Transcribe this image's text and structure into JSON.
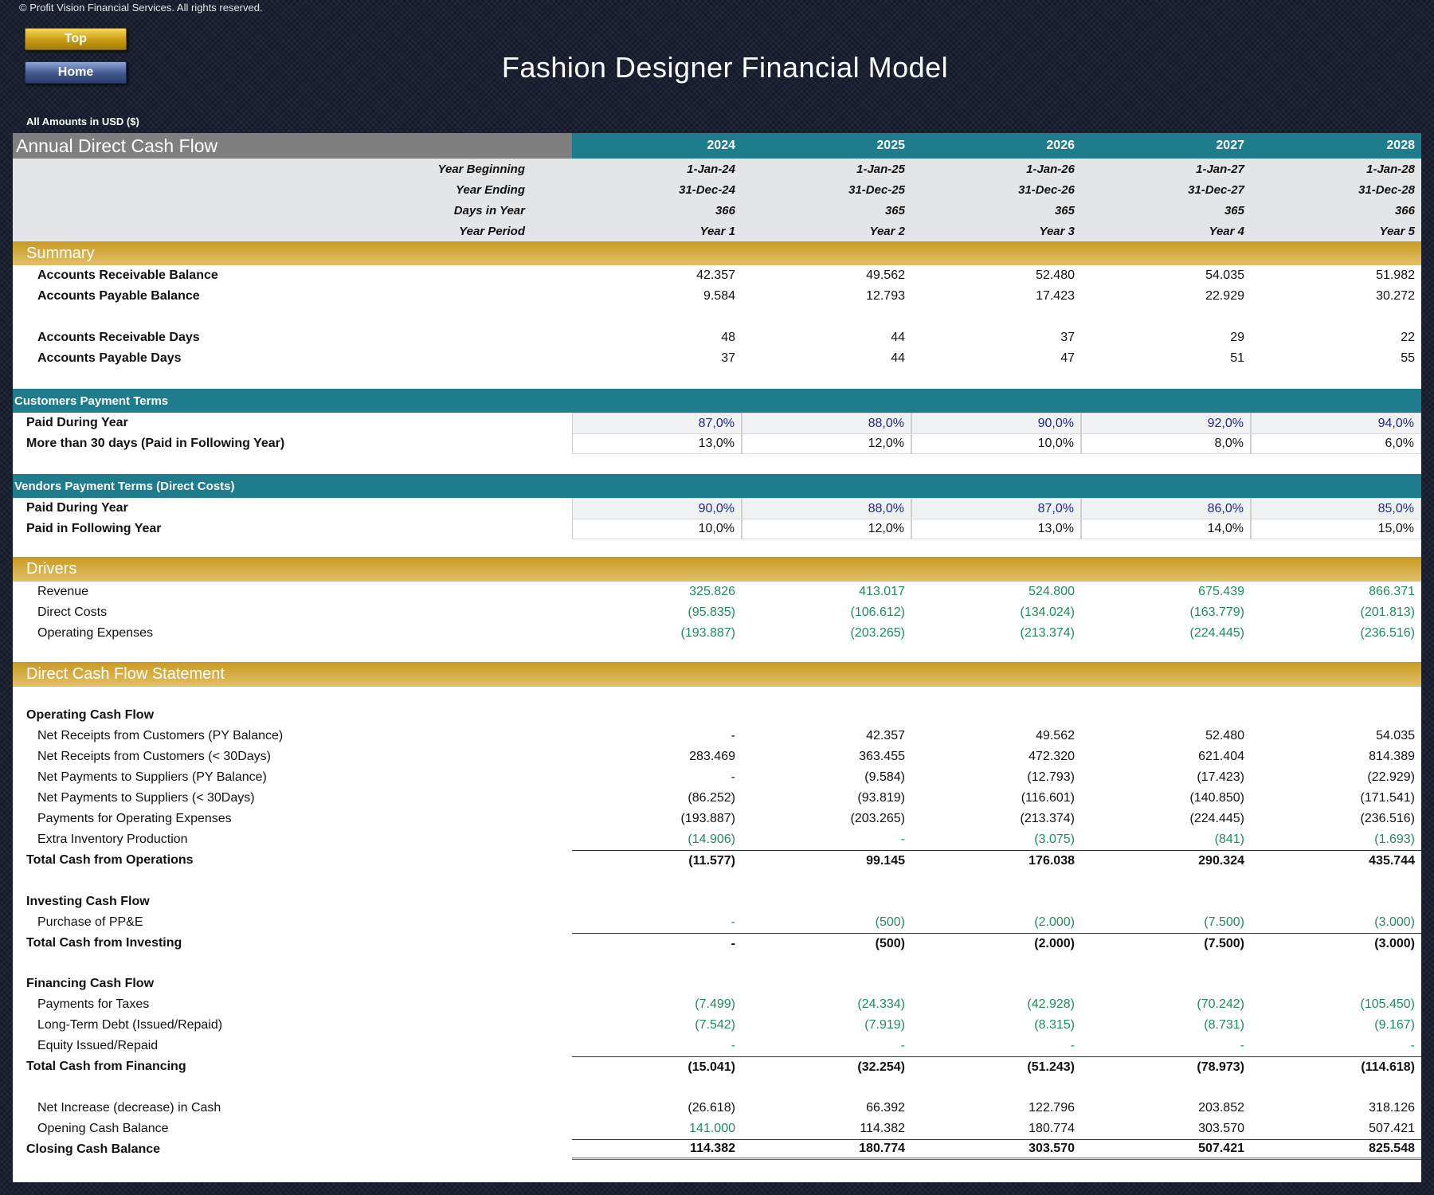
{
  "copyright": "© Profit Vision Financial Services. All rights reserved.",
  "nav": {
    "top_label": "Top",
    "home_label": "Home"
  },
  "title": "Fashion Designer Financial Model",
  "amounts_note": "All Amounts in  USD ($)",
  "sheet_title": "Annual Direct Cash Flow",
  "years": [
    "2024",
    "2025",
    "2026",
    "2027",
    "2028"
  ],
  "period_rows": [
    {
      "label": "Year Beginning",
      "values": [
        "1-Jan-24",
        "1-Jan-25",
        "1-Jan-26",
        "1-Jan-27",
        "1-Jan-28"
      ]
    },
    {
      "label": "Year Ending",
      "values": [
        "31-Dec-24",
        "31-Dec-25",
        "31-Dec-26",
        "31-Dec-27",
        "31-Dec-28"
      ]
    },
    {
      "label": "Days in Year",
      "values": [
        "366",
        "365",
        "365",
        "365",
        "366"
      ]
    },
    {
      "label": "Year Period",
      "values": [
        "Year 1",
        "Year 2",
        "Year 3",
        "Year 4",
        "Year 5"
      ]
    }
  ],
  "summary": {
    "title": "Summary",
    "rows": [
      {
        "label": "Accounts Receivable Balance",
        "values": [
          "42.357",
          "49.562",
          "52.480",
          "54.035",
          "51.982"
        ]
      },
      {
        "label": "Accounts Payable Balance",
        "values": [
          "9.584",
          "12.793",
          "17.423",
          "22.929",
          "30.272"
        ]
      },
      {
        "label": "Accounts Receivable Days",
        "values": [
          "48",
          "44",
          "37",
          "29",
          "22"
        ]
      },
      {
        "label": "Accounts Payable Days",
        "values": [
          "37",
          "44",
          "47",
          "51",
          "55"
        ]
      }
    ]
  },
  "customers_terms": {
    "title": "Customers Payment Terms",
    "rows": [
      {
        "label": "Paid During Year",
        "values": [
          "87,0%",
          "88,0%",
          "90,0%",
          "92,0%",
          "94,0%"
        ]
      },
      {
        "label": "More than 30 days (Paid in Following Year)",
        "values": [
          "13,0%",
          "12,0%",
          "10,0%",
          "8,0%",
          "6,0%"
        ]
      }
    ]
  },
  "vendors_terms": {
    "title": "Vendors Payment Terms (Direct Costs)",
    "rows": [
      {
        "label": "Paid During Year",
        "values": [
          "90,0%",
          "88,0%",
          "87,0%",
          "86,0%",
          "85,0%"
        ]
      },
      {
        "label": "Paid in Following Year",
        "values": [
          "10,0%",
          "12,0%",
          "13,0%",
          "14,0%",
          "15,0%"
        ]
      }
    ]
  },
  "drivers": {
    "title": "Drivers",
    "rows": [
      {
        "label": "Revenue",
        "values": [
          "325.826",
          "413.017",
          "524.800",
          "675.439",
          "866.371"
        ]
      },
      {
        "label": "Direct Costs",
        "values": [
          "(95.835)",
          "(106.612)",
          "(134.024)",
          "(163.779)",
          "(201.813)"
        ]
      },
      {
        "label": "Operating Expenses",
        "values": [
          "(193.887)",
          "(203.265)",
          "(213.374)",
          "(224.445)",
          "(236.516)"
        ]
      }
    ]
  },
  "cash_flow": {
    "title": "Direct Cash Flow Statement",
    "operating": {
      "heading": "Operating Cash Flow",
      "rows": [
        {
          "label": "Net Receipts from Customers (PY Balance)",
          "values": [
            "-",
            "42.357",
            "49.562",
            "52.480",
            "54.035"
          ]
        },
        {
          "label": "Net Receipts from Customers (< 30Days)",
          "values": [
            "283.469",
            "363.455",
            "472.320",
            "621.404",
            "814.389"
          ]
        },
        {
          "label": "Net Payments to Suppliers (PY Balance)",
          "values": [
            "-",
            "(9.584)",
            "(12.793)",
            "(17.423)",
            "(22.929)"
          ]
        },
        {
          "label": "Net Payments to Suppliers (< 30Days)",
          "values": [
            "(86.252)",
            "(93.819)",
            "(116.601)",
            "(140.850)",
            "(171.541)"
          ]
        },
        {
          "label": "Payments for Operating Expenses",
          "values": [
            "(193.887)",
            "(203.265)",
            "(213.374)",
            "(224.445)",
            "(236.516)"
          ]
        },
        {
          "label": "Extra Inventory Production",
          "values": [
            "(14.906)",
            "-",
            "(3.075)",
            "(841)",
            "(1.693)"
          ]
        }
      ],
      "total": {
        "label": "Total Cash from Operations",
        "values": [
          "(11.577)",
          "99.145",
          "176.038",
          "290.324",
          "435.744"
        ]
      }
    },
    "investing": {
      "heading": "Investing Cash Flow",
      "rows": [
        {
          "label": "Purchase of PP&E",
          "values": [
            "-",
            "(500)",
            "(2.000)",
            "(7.500)",
            "(3.000)"
          ]
        }
      ],
      "total": {
        "label": "Total Cash from Investing",
        "values": [
          "-",
          "(500)",
          "(2.000)",
          "(7.500)",
          "(3.000)"
        ]
      }
    },
    "financing": {
      "heading": "Financing Cash Flow",
      "rows": [
        {
          "label": "Payments for Taxes",
          "values": [
            "(7.499)",
            "(24.334)",
            "(42.928)",
            "(70.242)",
            "(105.450)"
          ]
        },
        {
          "label": "Long-Term Debt (Issued/Repaid)",
          "values": [
            "(7.542)",
            "(7.919)",
            "(8.315)",
            "(8.731)",
            "(9.167)"
          ]
        },
        {
          "label": "Equity Issued/Repaid",
          "values": [
            "-",
            "-",
            "-",
            "-",
            "-"
          ]
        }
      ],
      "total": {
        "label": "Total Cash from Financing",
        "values": [
          "(15.041)",
          "(32.254)",
          "(51.243)",
          "(78.973)",
          "(114.618)"
        ]
      }
    },
    "net_increase": {
      "label": "Net Increase (decrease) in Cash",
      "values": [
        "(26.618)",
        "66.392",
        "122.796",
        "203.852",
        "318.126"
      ]
    },
    "opening_cash": {
      "label": "Opening Cash Balance",
      "values": [
        "141.000",
        "114.382",
        "180.774",
        "303.570",
        "507.421"
      ]
    },
    "closing_cash": {
      "label": "Closing Cash Balance",
      "values": [
        "114.382",
        "180.774",
        "303.570",
        "507.421",
        "825.548"
      ]
    }
  },
  "colors": {
    "teal": "#1f7c8c",
    "gold": "#c99a22",
    "input_green": "#1e8c5a",
    "input_blue": "#1d2a8c",
    "header_gray": "#7f7f7f"
  }
}
